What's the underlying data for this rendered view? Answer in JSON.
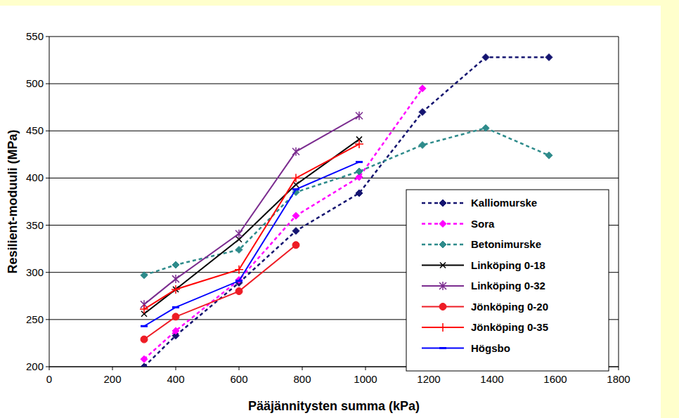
{
  "chart_data": {
    "type": "line",
    "x_label": "Pääjännitysten summa (kPa)",
    "y_label": "Resilient-moduuli (MPa)",
    "xlim": [
      0,
      1800
    ],
    "xticks": [
      0,
      200,
      400,
      600,
      800,
      1000,
      1200,
      1400,
      1600,
      1800
    ],
    "ylim": [
      200,
      550
    ],
    "yticks": [
      200,
      250,
      300,
      350,
      400,
      450,
      500,
      550
    ],
    "grid": true,
    "legend": "bottom-right",
    "series": [
      {
        "name": "Kalliomurske",
        "color": "#141470",
        "marker": "diamond",
        "line_style": "dashed",
        "x": [
          300,
          400,
          600,
          780,
          980,
          1180,
          1380,
          1580
        ],
        "values": [
          200,
          233,
          289,
          344,
          384,
          470,
          528,
          528
        ]
      },
      {
        "name": "Sora",
        "color": "#ff00ff",
        "marker": "diamond",
        "line_style": "dashed",
        "x": [
          300,
          400,
          600,
          780,
          980,
          1180
        ],
        "values": [
          208,
          238,
          292,
          360,
          401,
          495
        ]
      },
      {
        "name": "Betonimurske",
        "color": "#2e8b8b",
        "marker": "diamond",
        "line_style": "dashed",
        "x": [
          300,
          400,
          600,
          780,
          980,
          1180,
          1380,
          1580
        ],
        "values": [
          297,
          308,
          324,
          385,
          407,
          435,
          453,
          424
        ]
      },
      {
        "name": "Linköping 0-18",
        "color": "#000000",
        "marker": "x",
        "line_style": "solid",
        "x": [
          300,
          400,
          600,
          780,
          980
        ],
        "values": [
          256,
          282,
          335,
          393,
          441
        ]
      },
      {
        "name": "Linköping 0-32",
        "color": "#7b2c8f",
        "marker": "star",
        "line_style": "solid",
        "x": [
          300,
          400,
          600,
          780,
          980
        ],
        "values": [
          266,
          293,
          341,
          428,
          466
        ]
      },
      {
        "name": "Jönköping 0-20",
        "color": "#ee1c25",
        "marker": "circle",
        "line_style": "solid",
        "x": [
          300,
          400,
          600,
          780
        ],
        "values": [
          229,
          253,
          280,
          329
        ]
      },
      {
        "name": "Jönköping 0-35",
        "color": "#ff0000",
        "marker": "plus",
        "line_style": "solid",
        "x": [
          300,
          400,
          600,
          780,
          980
        ],
        "values": [
          261,
          282,
          303,
          400,
          436
        ]
      },
      {
        "name": "Högsbo",
        "color": "#0000ff",
        "marker": "dash",
        "line_style": "solid",
        "x": [
          300,
          400,
          600,
          780,
          980
        ],
        "values": [
          243,
          263,
          291,
          388,
          417
        ]
      }
    ]
  }
}
